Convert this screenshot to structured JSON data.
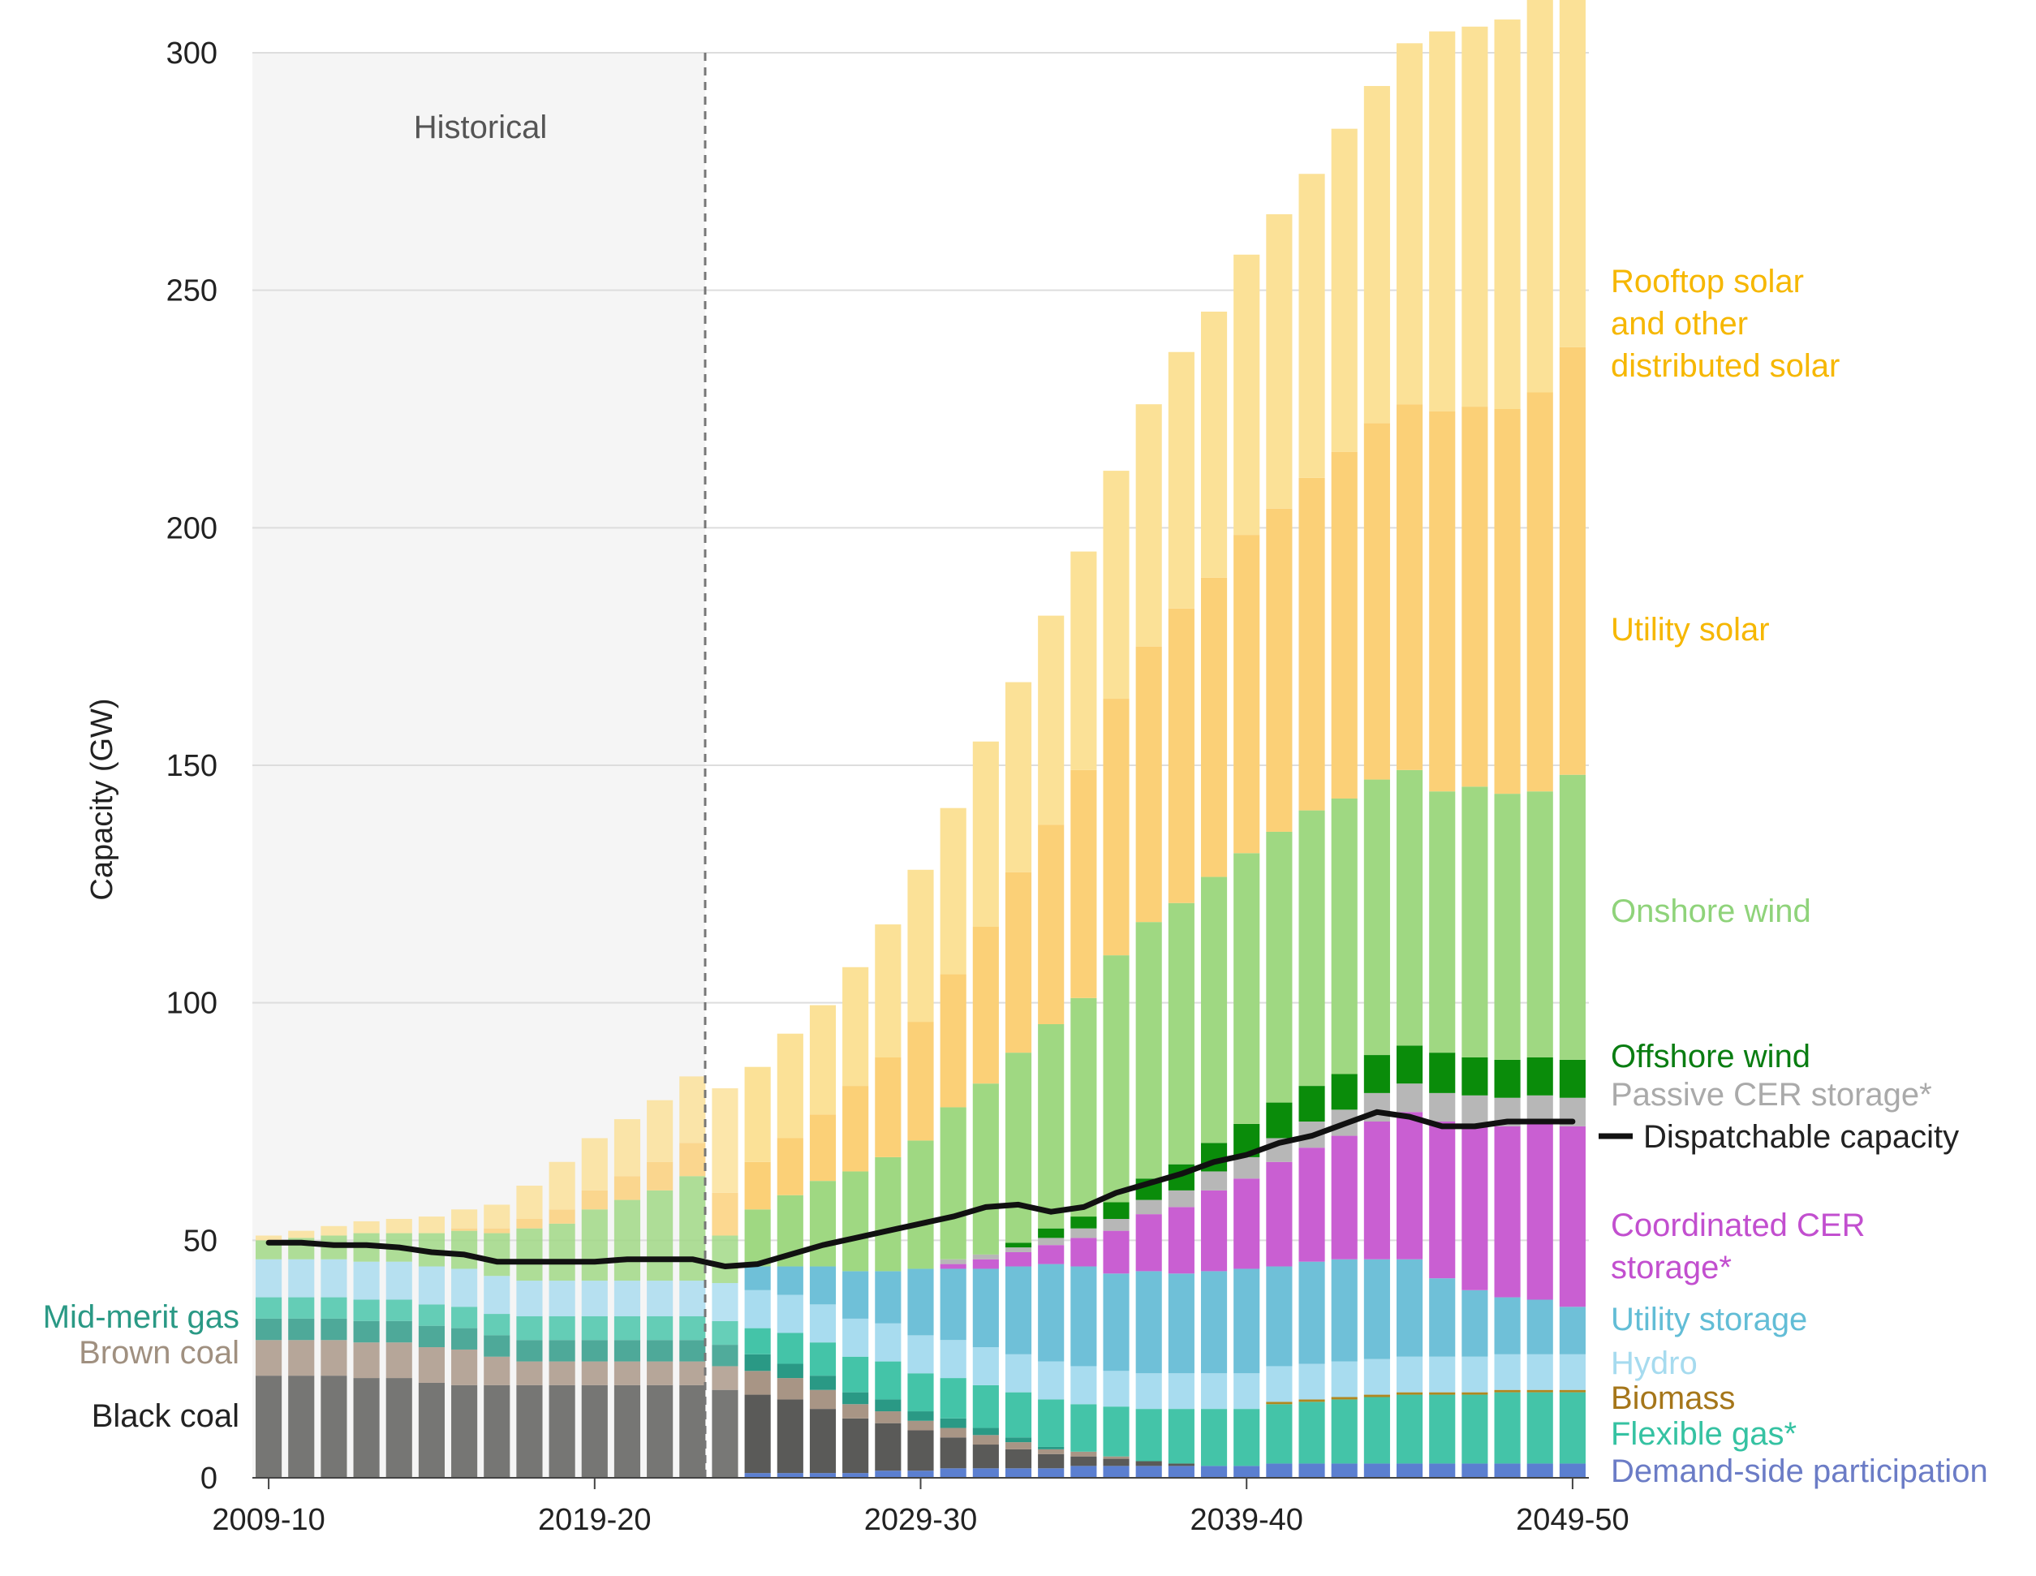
{
  "chart_data": {
    "type": "bar",
    "stacked": true,
    "ylabel": "Capacity (GW)",
    "ylim": [
      0,
      300
    ],
    "yticks": [
      0,
      50,
      100,
      150,
      200,
      250,
      300
    ],
    "xtick_labels": [
      "2009-10",
      "2019-20",
      "2029-30",
      "2039-40",
      "2049-50"
    ],
    "xtick_indices": [
      0,
      10,
      20,
      30,
      40
    ],
    "historical_label": "Historical",
    "historical_end_index": 14,
    "categories": [
      "2009-10",
      "2010-11",
      "2011-12",
      "2012-13",
      "2013-14",
      "2014-15",
      "2015-16",
      "2016-17",
      "2017-18",
      "2018-19",
      "2019-20",
      "2020-21",
      "2021-22",
      "2022-23",
      "2023-24",
      "2024-25",
      "2025-26",
      "2026-27",
      "2027-28",
      "2028-29",
      "2029-30",
      "2030-31",
      "2031-32",
      "2032-33",
      "2033-34",
      "2034-35",
      "2035-36",
      "2036-37",
      "2037-38",
      "2038-39",
      "2039-40",
      "2040-41",
      "2041-42",
      "2042-43",
      "2043-44",
      "2044-45",
      "2045-46",
      "2046-47",
      "2047-48",
      "2048-49",
      "2049-50"
    ],
    "series": [
      {
        "name": "Demand-side participation",
        "color": "#5b7fd0",
        "values": [
          0,
          0,
          0,
          0,
          0,
          0,
          0,
          0,
          0,
          0,
          0,
          0,
          0,
          0,
          0,
          1,
          1,
          1,
          1,
          1.5,
          1.5,
          2,
          2,
          2,
          2,
          2.5,
          2.5,
          2.5,
          2.5,
          2.5,
          2.5,
          3,
          3,
          3,
          3,
          3,
          3,
          3,
          3,
          3,
          3
        ]
      },
      {
        "name": "Black coal",
        "color": "#5a5a58",
        "values": [
          21.5,
          21.5,
          21.5,
          21,
          21,
          20,
          19.5,
          19.5,
          19.5,
          19.5,
          19.5,
          19.5,
          19.5,
          19.5,
          18.5,
          16.5,
          15.5,
          13.5,
          11.5,
          10,
          8.5,
          6.5,
          5,
          4,
          3,
          2,
          1.5,
          1,
          0.5,
          0,
          0,
          0,
          0,
          0,
          0,
          0,
          0,
          0,
          0,
          0,
          0
        ]
      },
      {
        "name": "Brown coal",
        "color": "#a89585",
        "values": [
          7.5,
          7.5,
          7.5,
          7.5,
          7.5,
          7.5,
          7.5,
          6,
          5,
          5,
          5,
          5,
          5,
          5,
          5,
          5,
          4.5,
          4,
          3,
          2.5,
          2,
          2,
          2,
          1.5,
          1,
          1,
          0.5,
          0,
          0,
          0,
          0,
          0,
          0,
          0,
          0,
          0,
          0,
          0,
          0,
          0,
          0
        ]
      },
      {
        "name": "Mid-merit gas",
        "color": "#2a9985",
        "values": [
          4.5,
          4.5,
          4.5,
          4.5,
          4.5,
          4.5,
          4.5,
          4.5,
          4.5,
          4.5,
          4.5,
          4.5,
          4.5,
          4.5,
          4.5,
          3.5,
          3,
          3,
          2.5,
          2.5,
          2,
          2,
          1.5,
          1,
          0.5,
          0,
          0,
          0,
          0,
          0,
          0,
          0,
          0,
          0,
          0,
          0,
          0,
          0,
          0,
          0,
          0
        ]
      },
      {
        "name": "Flexible gas*",
        "color": "#44c4a8",
        "values": [
          4.5,
          4.5,
          4.5,
          4.5,
          4.5,
          4.5,
          4.5,
          4.5,
          5,
          5,
          5,
          5,
          5,
          5,
          5,
          5.5,
          6.5,
          7,
          7.5,
          8,
          8,
          8.5,
          9,
          9.5,
          10,
          10,
          10.5,
          11,
          11.5,
          12,
          12,
          12.5,
          13,
          13.5,
          14,
          14.5,
          14.5,
          14.5,
          15,
          15,
          15
        ]
      },
      {
        "name": "Biomass",
        "color": "#b08820",
        "values": [
          0,
          0,
          0,
          0,
          0,
          0,
          0,
          0,
          0,
          0,
          0,
          0,
          0,
          0,
          0,
          0,
          0,
          0,
          0,
          0,
          0,
          0,
          0,
          0,
          0,
          0,
          0,
          0,
          0,
          0,
          0,
          0.5,
          0.5,
          0.5,
          0.5,
          0.5,
          0.5,
          0.5,
          0.5,
          0.5,
          0.5
        ]
      },
      {
        "name": "Hydro",
        "color": "#a8dcef",
        "values": [
          8,
          8,
          8,
          8,
          8,
          8,
          8,
          8,
          7.5,
          7.5,
          7.5,
          7.5,
          7.5,
          7.5,
          8,
          8,
          8,
          8,
          8,
          8,
          8,
          8,
          8,
          8,
          8,
          8,
          7.5,
          7.5,
          7.5,
          7.5,
          7.5,
          7.5,
          7.5,
          7.5,
          7.5,
          7.5,
          7.5,
          7.5,
          7.5,
          7.5,
          7.5
        ]
      },
      {
        "name": "Utility storage",
        "color": "#6fc0d8",
        "values": [
          0,
          0,
          0,
          0,
          0,
          0,
          0,
          0,
          0,
          0,
          0,
          0,
          0,
          0,
          0,
          5,
          6,
          8,
          10,
          11,
          14,
          15,
          16.5,
          18.5,
          20.5,
          21,
          20.5,
          21.5,
          21,
          21.5,
          22,
          21,
          21.5,
          21.5,
          21,
          20.5,
          16.5,
          14,
          12,
          11.5,
          10
        ]
      },
      {
        "name": "Coordinated CER storage*",
        "color": "#c95fd2",
        "values": [
          0,
          0,
          0,
          0,
          0,
          0,
          0,
          0,
          0,
          0,
          0,
          0,
          0,
          0,
          0,
          0,
          0,
          0,
          0,
          0,
          0,
          1,
          2,
          3,
          4,
          6,
          9,
          12,
          14,
          17,
          19,
          22,
          24,
          26,
          29,
          31,
          33,
          35,
          36,
          37,
          38
        ]
      },
      {
        "name": "Passive CER storage*",
        "color": "#b7b7b7",
        "values": [
          0,
          0,
          0,
          0,
          0,
          0,
          0,
          0,
          0,
          0,
          0,
          0,
          0,
          0,
          0,
          0,
          0,
          0,
          0,
          0,
          0,
          1,
          1,
          1,
          1.5,
          2,
          2.5,
          3,
          3.5,
          4,
          4.5,
          5,
          5.5,
          5.5,
          6,
          6,
          6,
          6,
          6,
          6,
          6
        ]
      },
      {
        "name": "Offshore wind",
        "color": "#0a8c0a",
        "values": [
          0,
          0,
          0,
          0,
          0,
          0,
          0,
          0,
          0,
          0,
          0,
          0,
          0,
          0,
          0,
          0,
          0,
          0,
          0,
          0,
          0,
          0,
          0,
          1,
          2,
          2.5,
          3.5,
          4.5,
          5.5,
          6,
          7,
          7.5,
          7.5,
          7.5,
          8,
          8,
          8.5,
          8,
          8,
          8,
          8
        ]
      },
      {
        "name": "Onshore wind",
        "color": "#9fd882",
        "values": [
          4,
          4.5,
          5,
          6,
          6,
          7,
          8,
          9,
          11,
          12,
          15,
          17,
          19,
          22,
          10,
          12,
          15,
          18,
          21,
          24,
          27,
          32,
          36,
          40,
          43,
          46,
          52,
          54,
          55,
          56,
          57,
          57,
          58,
          58,
          58,
          58,
          55,
          57,
          56,
          56,
          60
        ]
      },
      {
        "name": "Utility solar",
        "color": "#fbd077",
        "values": [
          0,
          0,
          0,
          0,
          0,
          0,
          0.5,
          1,
          2,
          3,
          4,
          5,
          6,
          7,
          9,
          10,
          12,
          14,
          18,
          21,
          25,
          28,
          33,
          38,
          42,
          48,
          54,
          58,
          62,
          63,
          67,
          68,
          70,
          73,
          75,
          77,
          80,
          80,
          81,
          84,
          90
        ]
      },
      {
        "name": "Rooftop solar and other distributed solar",
        "color": "#fbe197",
        "values": [
          1,
          1.5,
          2,
          2.5,
          3,
          3.5,
          4,
          5,
          7,
          10,
          11,
          12,
          13,
          14,
          22,
          20,
          22,
          23,
          25,
          28,
          32,
          35,
          39,
          40,
          44,
          46,
          48,
          51,
          54,
          56,
          59,
          62,
          64,
          68,
          71,
          76,
          80,
          80,
          82,
          83,
          85
        ]
      }
    ],
    "line_series": {
      "name": "Dispatchable capacity",
      "color": "#111111",
      "values": [
        49.5,
        49.5,
        49,
        49,
        48.5,
        47.5,
        47,
        45.5,
        45.5,
        45.5,
        45.5,
        46,
        46,
        46,
        44.5,
        45,
        47,
        49,
        50.5,
        52,
        53.5,
        55,
        57,
        57.5,
        56,
        57,
        60,
        62,
        64,
        66.5,
        68,
        70.5,
        72,
        74.5,
        77,
        76,
        74,
        74,
        75,
        75,
        75
      ]
    },
    "right_labels": [
      {
        "lines": [
          "Rooftop solar",
          "and other",
          "distributed solar"
        ],
        "color": "#f6b700"
      },
      {
        "lines": [
          "Utility solar"
        ],
        "color": "#f6b700"
      },
      {
        "lines": [
          "Onshore wind"
        ],
        "color": "#8fd37a"
      },
      {
        "lines": [
          "Offshore wind"
        ],
        "color": "#0a7d12"
      },
      {
        "lines": [
          "Passive CER storage*"
        ],
        "color": "#aaaaaa"
      },
      {
        "lines": [
          "Dispatchable capacity"
        ],
        "color": "#222222"
      },
      {
        "lines": [
          "Coordinated CER",
          "storage*"
        ],
        "color": "#c24fcf"
      },
      {
        "lines": [
          "Utility storage"
        ],
        "color": "#62bdd6"
      },
      {
        "lines": [
          "Hydro"
        ],
        "color": "#a6dbef"
      },
      {
        "lines": [
          "Biomass"
        ],
        "color": "#a5761a"
      },
      {
        "lines": [
          "Flexible gas*"
        ],
        "color": "#35c2a2"
      },
      {
        "lines": [
          "Demand-side participation"
        ],
        "color": "#6b7cc6"
      }
    ],
    "left_labels": [
      {
        "text": "Mid-merit gas",
        "color": "#2a9985"
      },
      {
        "text": "Brown coal",
        "color": "#a09080"
      },
      {
        "text": "Black coal",
        "color": "#222222"
      }
    ]
  }
}
